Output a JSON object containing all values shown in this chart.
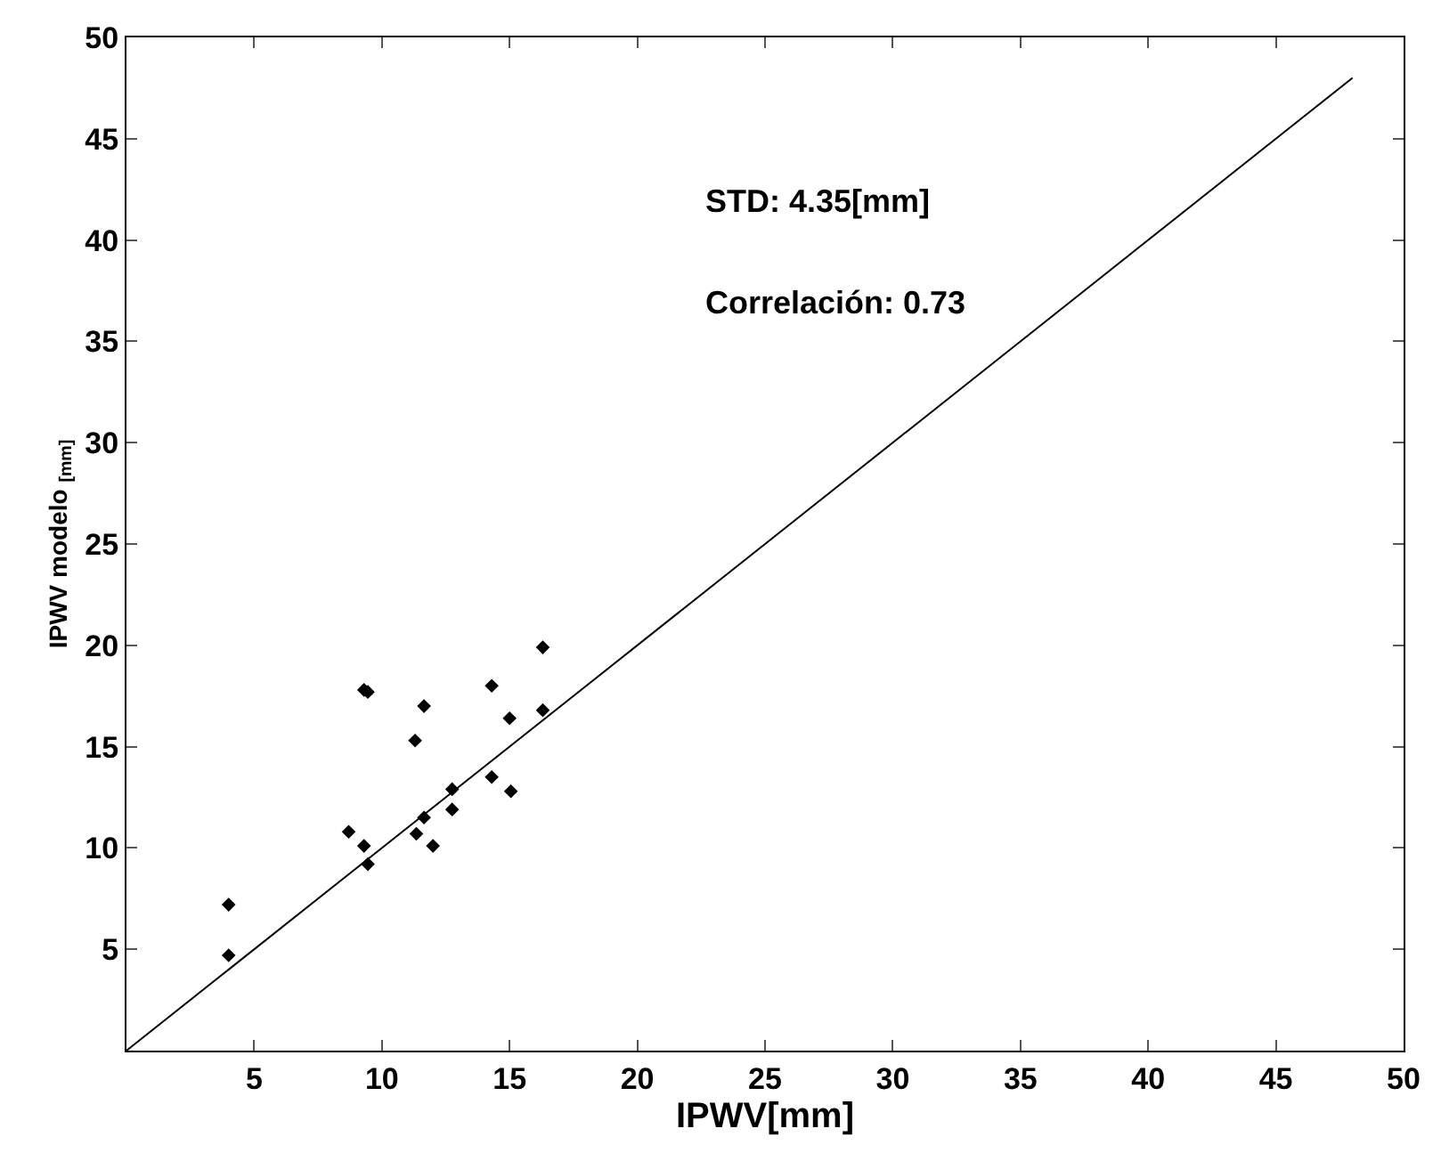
{
  "chart_data": {
    "type": "scatter",
    "xlabel": "IPWV[mm]",
    "ylabel": "IPWV modelo $_{[mm]}$",
    "annotations": [
      "STD: 4.35[mm]",
      "Correlación: 0.73"
    ],
    "xlim": [
      0,
      50
    ],
    "ylim": [
      0,
      50
    ],
    "xticks": [
      5,
      10,
      15,
      20,
      25,
      30,
      35,
      40,
      45,
      50
    ],
    "yticks": [
      5,
      10,
      15,
      20,
      25,
      30,
      35,
      40,
      45,
      50
    ],
    "legend": false,
    "marker": "diamond",
    "series": [
      {
        "color": "#000000",
        "x": [
          4.0,
          4.0,
          8.7,
          9.3,
          9.45,
          9.3,
          9.45,
          11.3,
          11.65,
          11.65,
          11.35,
          12.0,
          12.75,
          12.75,
          14.3,
          14.3,
          15.0,
          15.05,
          16.3,
          16.3
        ],
        "values": [
          7.2,
          4.7,
          10.8,
          10.1,
          9.2,
          17.8,
          17.7,
          15.3,
          17.0,
          11.5,
          10.7,
          10.1,
          12.9,
          11.9,
          18.0,
          13.5,
          16.4,
          12.8,
          19.9,
          16.8
        ]
      },
      {
        "type": "line",
        "color": "#000000",
        "x": [
          0,
          48
        ],
        "values": [
          0,
          48
        ],
        "marker": "none",
        "line_style": "solid"
      }
    ]
  }
}
